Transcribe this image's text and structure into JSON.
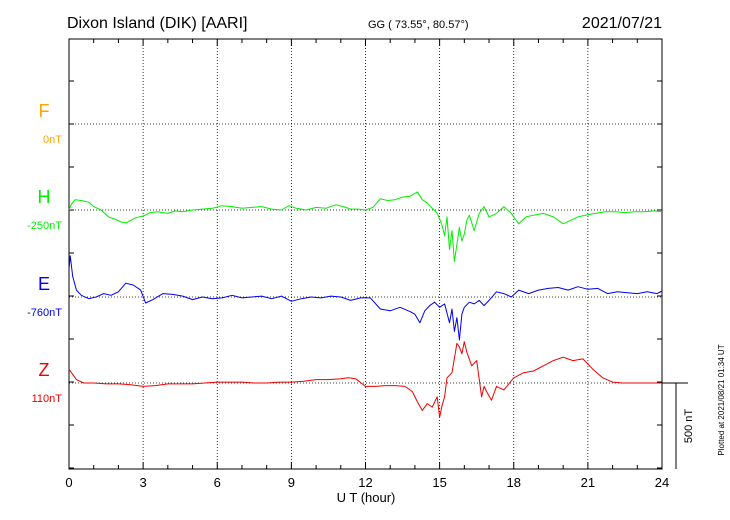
{
  "header": {
    "station": "Dixon Island (DIK)  [AARI]",
    "coords": "GG ( 73.55°,  80.57°)",
    "date": "2021/07/21"
  },
  "plotted_stamp": "Plotted at 2021/08/21 01:34 UT",
  "scale_label": "500 nT",
  "chart_data": {
    "type": "line",
    "xlabel": "U T (hour)",
    "xlim": [
      0,
      24
    ],
    "xticks": [
      "0",
      "3",
      "6",
      "9",
      "12",
      "15",
      "18",
      "21",
      "24"
    ],
    "grid": true,
    "scale_bar_nT": 500,
    "series": [
      {
        "name": "F",
        "baseline_label": "0nT",
        "color": "#ffa500",
        "x": [],
        "y": []
      },
      {
        "name": "H",
        "baseline_label": "-250nT",
        "color": "#00ee00",
        "x": [
          0,
          0.1,
          0.25,
          0.5,
          0.8,
          1.0,
          1.3,
          1.6,
          1.9,
          2.1,
          2.3,
          2.5,
          2.7,
          3.0,
          3.3,
          3.6,
          4.0,
          4.3,
          4.6,
          5.0,
          5.4,
          5.8,
          6.2,
          6.6,
          7.0,
          7.4,
          7.8,
          8.2,
          8.6,
          8.9,
          9.2,
          9.6,
          10.0,
          10.4,
          10.8,
          11.1,
          11.4,
          11.7,
          12.0,
          12.3,
          12.6,
          12.9,
          13.2,
          13.5,
          13.8,
          14.1,
          14.3,
          14.5,
          14.7,
          14.9,
          15.0,
          15.1,
          15.2,
          15.3,
          15.4,
          15.5,
          15.6,
          15.7,
          15.8,
          15.9,
          16.0,
          16.1,
          16.2,
          16.4,
          16.6,
          16.8,
          17.0,
          17.3,
          17.6,
          17.9,
          18.2,
          18.5,
          18.8,
          19.2,
          19.6,
          20.0,
          20.3,
          20.6,
          20.9,
          21.3,
          21.7,
          22.1,
          22.5,
          22.9,
          23.3,
          23.7,
          24.0
        ],
        "y": [
          0,
          35,
          60,
          55,
          45,
          20,
          0,
          -40,
          -55,
          -70,
          -75,
          -60,
          -45,
          -35,
          -15,
          -10,
          -20,
          -5,
          -10,
          0,
          5,
          10,
          25,
          20,
          10,
          15,
          20,
          5,
          0,
          25,
          10,
          0,
          15,
          10,
          30,
          20,
          5,
          5,
          0,
          15,
          65,
          55,
          60,
          75,
          80,
          105,
          60,
          40,
          10,
          -20,
          -50,
          -90,
          -150,
          -40,
          -230,
          -120,
          -300,
          -200,
          -100,
          -180,
          -140,
          -60,
          -30,
          -120,
          -20,
          20,
          -40,
          -20,
          20,
          -20,
          -80,
          -40,
          -30,
          -20,
          -40,
          -80,
          -60,
          -40,
          -30,
          -20,
          -10,
          -10,
          -15,
          -10,
          -10,
          -5,
          -10
        ]
      },
      {
        "name": "E",
        "baseline_label": "-760nT",
        "color": "#0000ee",
        "x": [
          0,
          0.05,
          0.15,
          0.3,
          0.5,
          0.8,
          1.1,
          1.4,
          1.7,
          2.0,
          2.3,
          2.6,
          2.9,
          3.1,
          3.4,
          3.8,
          4.2,
          4.6,
          5.0,
          5.4,
          5.8,
          6.2,
          6.6,
          7.0,
          7.4,
          7.8,
          8.2,
          8.6,
          9.0,
          9.4,
          9.8,
          10.2,
          10.6,
          11.0,
          11.4,
          11.8,
          12.2,
          12.6,
          13.0,
          13.4,
          13.8,
          14.0,
          14.2,
          14.4,
          14.6,
          14.8,
          15.0,
          15.2,
          15.4,
          15.5,
          15.6,
          15.7,
          15.8,
          15.9,
          16.0,
          16.2,
          16.4,
          16.6,
          16.8,
          17.0,
          17.3,
          17.6,
          17.9,
          18.2,
          18.6,
          19.0,
          19.4,
          19.8,
          20.2,
          20.6,
          21.0,
          21.4,
          21.8,
          22.2,
          22.6,
          23.0,
          23.4,
          23.8,
          24.0
        ],
        "y": [
          160,
          240,
          120,
          40,
          10,
          -10,
          0,
          20,
          10,
          30,
          80,
          70,
          40,
          -35,
          -15,
          20,
          15,
          5,
          -15,
          0,
          -10,
          -5,
          10,
          -5,
          0,
          5,
          -10,
          5,
          -25,
          -10,
          0,
          -5,
          5,
          0,
          -20,
          -5,
          -5,
          -70,
          -80,
          -60,
          -85,
          -100,
          -150,
          -80,
          -50,
          -30,
          -60,
          -40,
          -150,
          -70,
          -200,
          -120,
          -250,
          -100,
          -60,
          -30,
          -40,
          -20,
          -50,
          -20,
          30,
          20,
          0,
          40,
          20,
          40,
          50,
          55,
          40,
          60,
          45,
          50,
          20,
          30,
          25,
          20,
          30,
          20,
          35
        ]
      },
      {
        "name": "Z",
        "baseline_label": "110nT",
        "color": "#ee0000",
        "x": [
          0,
          0.1,
          0.3,
          0.6,
          1.0,
          1.5,
          2.0,
          2.5,
          3.0,
          3.5,
          4.0,
          4.5,
          5.0,
          5.5,
          6.0,
          6.5,
          7.0,
          7.5,
          8.0,
          8.5,
          9.0,
          9.5,
          10.0,
          10.5,
          11.0,
          11.3,
          11.6,
          12.0,
          12.4,
          12.8,
          13.2,
          13.6,
          13.9,
          14.1,
          14.3,
          14.5,
          14.7,
          14.9,
          15.0,
          15.1,
          15.2,
          15.3,
          15.5,
          15.7,
          15.8,
          15.9,
          16.0,
          16.1,
          16.3,
          16.5,
          16.7,
          16.8,
          16.9,
          17.1,
          17.3,
          17.6,
          18.0,
          18.4,
          18.8,
          19.2,
          19.6,
          20.0,
          20.4,
          20.8,
          21.2,
          21.6,
          22.0,
          22.4,
          22.8,
          23.2,
          23.6,
          24.0
        ],
        "y": [
          80,
          60,
          20,
          0,
          0,
          -5,
          -5,
          -10,
          -20,
          -15,
          -5,
          -5,
          -5,
          0,
          5,
          5,
          5,
          0,
          0,
          5,
          5,
          10,
          20,
          20,
          25,
          30,
          25,
          -20,
          -20,
          -15,
          -15,
          -20,
          -50,
          -110,
          -160,
          -120,
          -140,
          -80,
          -200,
          -130,
          -80,
          30,
          60,
          230,
          210,
          170,
          240,
          180,
          100,
          130,
          -80,
          -20,
          -50,
          -100,
          -20,
          -40,
          30,
          60,
          70,
          100,
          130,
          150,
          130,
          140,
          80,
          30,
          5,
          0,
          0,
          0,
          0,
          0
        ]
      }
    ]
  }
}
